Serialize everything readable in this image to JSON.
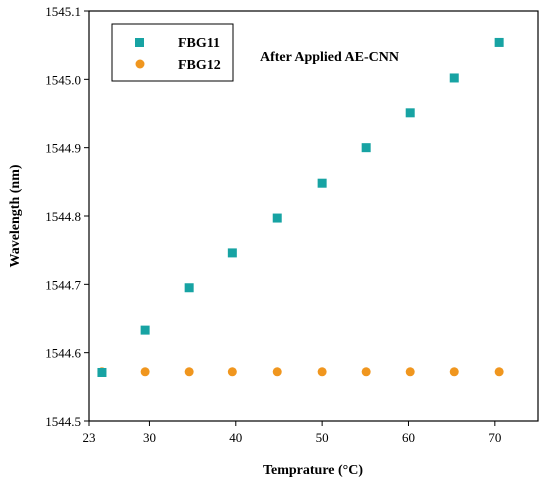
{
  "chart_data": {
    "type": "scatter",
    "title": "",
    "annotation": "After Applied AE-CNN",
    "xlabel": "Temprature (°C)",
    "ylabel": "Wavelength  (nm)",
    "xlim": [
      23,
      75
    ],
    "ylim": [
      1544.5,
      1545.1
    ],
    "x_ticks": [
      23,
      30,
      40,
      50,
      60,
      70
    ],
    "y_ticks": [
      1544.5,
      1544.6,
      1544.7,
      1544.8,
      1544.9,
      1545.0,
      1545.1
    ],
    "x_tick_labels": [
      "23",
      "30",
      "40",
      "50",
      "60",
      "70"
    ],
    "y_tick_labels": [
      "1544.5",
      "1544.6",
      "1544.7",
      "1544.8",
      "1544.9",
      "1545.0",
      "1545.1"
    ],
    "grid": false,
    "legend_position": "top-left",
    "series": [
      {
        "name": "FBG11",
        "marker": "square",
        "color": "#17a3a3",
        "x": [
          24.5,
          29.5,
          34.6,
          39.6,
          44.8,
          50.0,
          55.1,
          60.2,
          65.3,
          70.5
        ],
        "y": [
          1544.571,
          1544.633,
          1544.695,
          1544.746,
          1544.797,
          1544.848,
          1544.9,
          1544.951,
          1545.002,
          1545.054
        ]
      },
      {
        "name": "FBG12",
        "marker": "circle",
        "color": "#f0961e",
        "x": [
          24.5,
          29.5,
          34.6,
          39.6,
          44.8,
          50.0,
          55.1,
          60.2,
          65.3,
          70.5
        ],
        "y": [
          1544.572,
          1544.572,
          1544.572,
          1544.572,
          1544.572,
          1544.572,
          1544.572,
          1544.572,
          1544.572,
          1544.572
        ]
      }
    ]
  }
}
